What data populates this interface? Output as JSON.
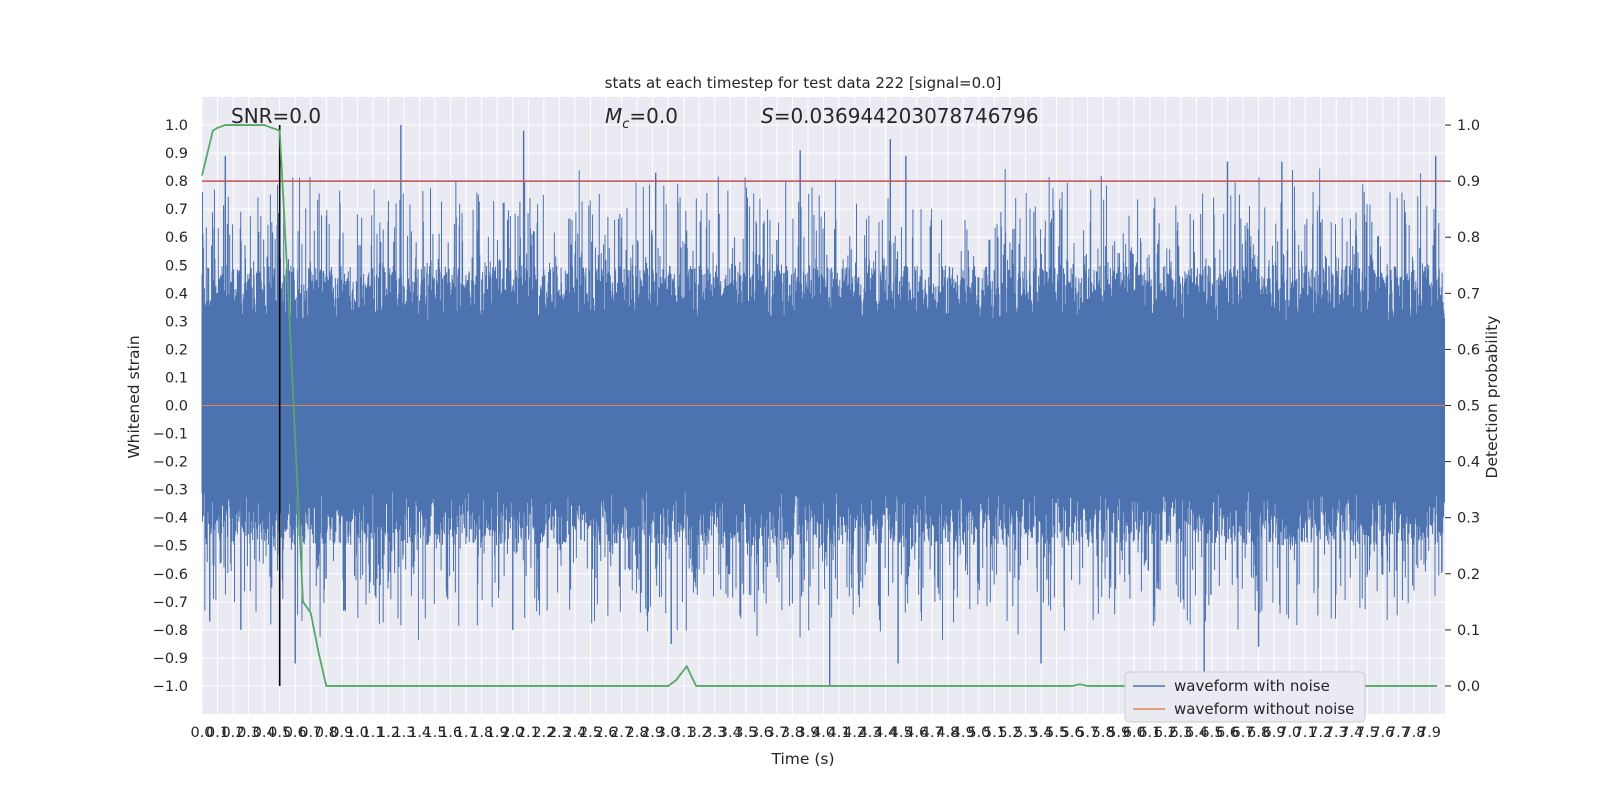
{
  "chart_data": {
    "type": "line",
    "title": "stats at each timestep for test data 222 [signal=0.0]",
    "xlabel": "Time (s)",
    "ylabel": "Whitened strain",
    "y2label": "Detection probability",
    "xlim": [
      0.0,
      8.0
    ],
    "ylim": [
      -1.1,
      1.1
    ],
    "y2lim": [
      -0.05,
      1.05
    ],
    "x_ticks": [
      "0.0",
      "0.1",
      "0.2",
      "0.3",
      "0.4",
      "0.5",
      "0.6",
      "0.7",
      "0.8",
      "0.9",
      "1.0",
      "1.1",
      "1.2",
      "1.3",
      "1.4",
      "1.5",
      "1.6",
      "1.7",
      "1.8",
      "1.9",
      "2.0",
      "2.1",
      "2.2",
      "2.3",
      "2.4",
      "2.5",
      "2.6",
      "2.7",
      "2.8",
      "2.9",
      "3.0",
      "3.1",
      "3.2",
      "3.3",
      "3.4",
      "3.5",
      "3.6",
      "3.7",
      "3.8",
      "3.9",
      "4.0",
      "4.1",
      "4.2",
      "4.3",
      "4.4",
      "4.5",
      "4.6",
      "4.7",
      "4.8",
      "4.9",
      "5.0",
      "5.1",
      "5.2",
      "5.3",
      "5.4",
      "5.5",
      "5.6",
      "5.7",
      "5.8",
      "5.9",
      "6.0",
      "6.1",
      "6.2",
      "6.3",
      "6.4",
      "6.5",
      "6.6",
      "6.7",
      "6.8",
      "6.9",
      "7.0",
      "7.1",
      "7.2",
      "7.3",
      "7.4",
      "7.5",
      "7.6",
      "7.7",
      "7.8",
      "7.9"
    ],
    "y_ticks": [
      "1.0",
      "0.9",
      "0.8",
      "0.7",
      "0.6",
      "0.5",
      "0.4",
      "0.3",
      "0.2",
      "0.1",
      "0.0",
      "−0.1",
      "−0.2",
      "−0.3",
      "−0.4",
      "−0.5",
      "−0.6",
      "−0.7",
      "−0.8",
      "−0.9",
      "−1.0"
    ],
    "y2_ticks": [
      "1.0",
      "0.9",
      "0.8",
      "0.7",
      "0.6",
      "0.5",
      "0.4",
      "0.3",
      "0.2",
      "0.1",
      "0.0"
    ],
    "grid": true,
    "legend_position": "lower-right",
    "annotations": {
      "snr": "SNR=0.0",
      "mc_symbol": "M",
      "mc_sub": "c",
      "mc_value": "=0.0",
      "s_symbol": "S",
      "s_value": "=0.036944203078746796"
    },
    "threshold_y2": 0.9,
    "marker_x": 0.5,
    "series": [
      {
        "name": "waveform with noise",
        "color": "#4c72b0",
        "style": "noise",
        "description_of_values": "dense whitened noise, mostly within ±0.45 with spikes near ±1.0",
        "spikes": [
          {
            "x": 0.15,
            "y": 0.89
          },
          {
            "x": 1.28,
            "y": 1.0
          },
          {
            "x": 2.07,
            "y": 0.98
          },
          {
            "x": 2.92,
            "y": 0.83
          },
          {
            "x": 3.85,
            "y": 0.91
          },
          {
            "x": 4.04,
            "y": -1.0
          },
          {
            "x": 4.43,
            "y": 0.95
          },
          {
            "x": 4.53,
            "y": 0.89
          },
          {
            "x": 6.45,
            "y": -1.03
          },
          {
            "x": 6.6,
            "y": 0.87
          },
          {
            "x": 6.95,
            "y": 0.87
          },
          {
            "x": 7.94,
            "y": 0.89
          },
          {
            "x": 0.05,
            "y": -0.77
          },
          {
            "x": 0.25,
            "y": -0.8
          },
          {
            "x": 0.6,
            "y": -0.92
          },
          {
            "x": 3.02,
            "y": -0.85
          },
          {
            "x": 4.48,
            "y": -0.92
          },
          {
            "x": 5.4,
            "y": -0.92
          },
          {
            "x": 2.0,
            "y": -0.8
          },
          {
            "x": 6.8,
            "y": -0.86
          }
        ]
      },
      {
        "name": "waveform without noise",
        "color": "#dd8452",
        "values": "flat at 0.0"
      },
      {
        "name": "",
        "color": "#55a868",
        "axis": "y2",
        "x": [
          0.0,
          0.07,
          0.1,
          0.15,
          0.2,
          0.3,
          0.4,
          0.45,
          0.5,
          0.55,
          0.6,
          0.65,
          0.7,
          0.75,
          0.8,
          1.0,
          2.0,
          3.0,
          3.05,
          3.12,
          3.18,
          3.3,
          4.0,
          5.0,
          5.6,
          5.65,
          5.7,
          6.0,
          7.0,
          7.95
        ],
        "y": [
          0.91,
          0.99,
          0.995,
          1.0,
          1.0,
          1.0,
          1.0,
          0.995,
          0.99,
          0.73,
          0.44,
          0.15,
          0.13,
          0.06,
          0.0,
          0.0,
          0.0,
          0.0,
          0.01,
          0.035,
          0.0,
          0.0,
          0.0,
          0.0,
          0.0,
          0.003,
          0.0,
          0.0,
          0.0,
          0.0
        ]
      }
    ],
    "palette": {
      "plot_background": "#eaeaf2",
      "grid": "#ffffff",
      "threshold": "#c44e52",
      "marker": "#000000"
    }
  }
}
